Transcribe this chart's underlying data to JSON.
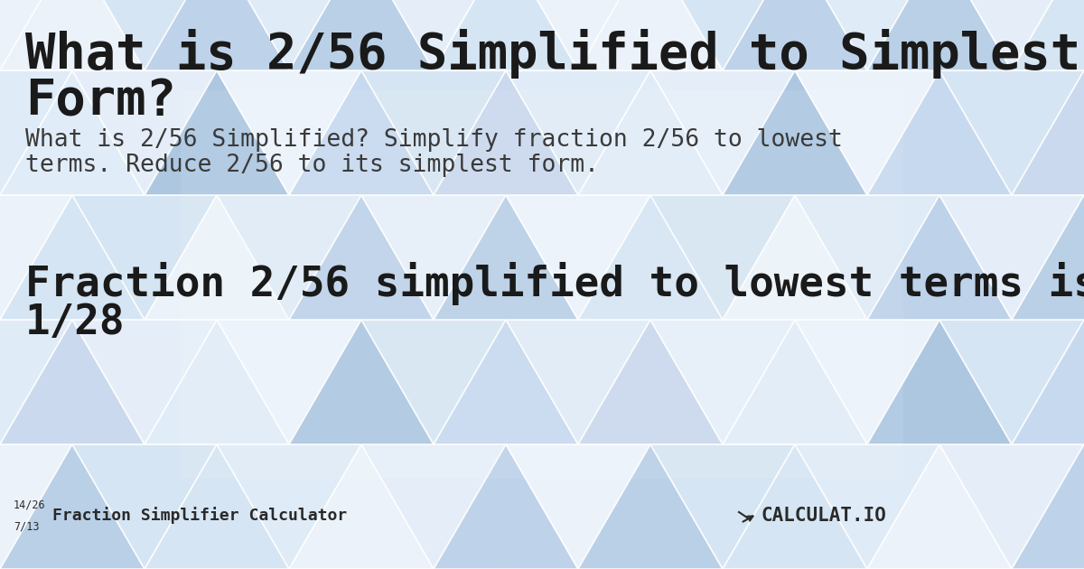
{
  "title_line1": "What is 2/56 Simplified to Simplest",
  "title_line2": "Form?",
  "subtitle_line1": "What is 2/56 Simplified? Simplify fraction 2/56 to lowest",
  "subtitle_line2": "terms. Reduce 2/56 to its simplest form.",
  "result_line1": "Fraction 2/56 simplified to lowest terms is",
  "result_line2": "1/28",
  "footer_frac1": "14/26",
  "footer_frac2": "7/13",
  "footer_label": "Fraction Simplifier Calculator",
  "bg_color": "#c5d8ed",
  "title_color": "#1a1a1a",
  "subtitle_color": "#3a3a3a",
  "result_color": "#1a1a1a",
  "footer_color": "#2a2a2a",
  "title_fontsize": 40,
  "subtitle_fontsize": 19,
  "result_fontsize": 33,
  "footer_fontsize": 13,
  "tri_colors": [
    "#b8cfe6",
    "#ccdaee",
    "#d8e8f5",
    "#e5f0fa",
    "#f2f7fc",
    "#a9c5e0",
    "#bdd1ea",
    "#c8daf0"
  ],
  "white_tri_colors": [
    "#e8f2fb",
    "#f0f6fd",
    "#f8fbff",
    "#ddeaf6"
  ]
}
